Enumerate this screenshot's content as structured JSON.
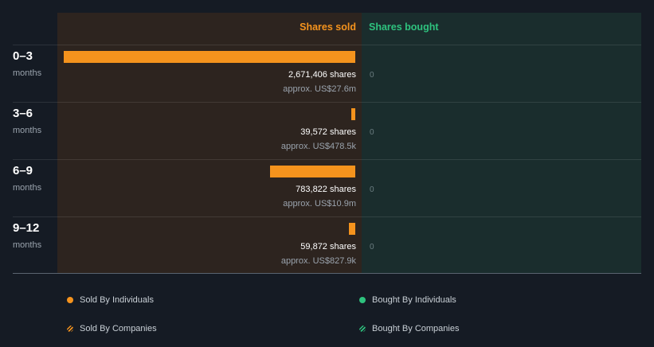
{
  "columns": {
    "sold": "Shares sold",
    "bought": "Shares bought"
  },
  "colors": {
    "sold": "#f5931d",
    "bought": "#2ec27e"
  },
  "chart_data": {
    "type": "bar",
    "orientation": "horizontal",
    "categories": [
      "0–3",
      "3–6",
      "6–9",
      "9–12"
    ],
    "category_unit": "months",
    "series": [
      {
        "name": "Shares sold",
        "values": [
          2671406,
          39572,
          783822,
          59872
        ]
      },
      {
        "name": "Shares bought",
        "values": [
          0,
          0,
          0,
          0
        ]
      }
    ]
  },
  "rows": [
    {
      "period": "0–3",
      "unit": "months",
      "shares_label": "2,671,406 shares",
      "approx_label": "approx. US$27.6m",
      "bought_label": "0"
    },
    {
      "period": "3–6",
      "unit": "months",
      "shares_label": "39,572 shares",
      "approx_label": "approx. US$478.5k",
      "bought_label": "0"
    },
    {
      "period": "6–9",
      "unit": "months",
      "shares_label": "783,822 shares",
      "approx_label": "approx. US$10.9m",
      "bought_label": "0"
    },
    {
      "period": "9–12",
      "unit": "months",
      "shares_label": "59,872 shares",
      "approx_label": "approx. US$827.9k",
      "bought_label": "0"
    }
  ],
  "legend": [
    {
      "label": "Sold By Individuals",
      "icon": "dot-icon",
      "color": "#f5931d"
    },
    {
      "label": "Bought By Individuals",
      "icon": "dot-icon",
      "color": "#2ec27e"
    },
    {
      "label": "Sold By Companies",
      "icon": "hatched-dot-icon",
      "color": "#f5931d"
    },
    {
      "label": "Bought By Companies",
      "icon": "hatched-dot-icon",
      "color": "#2ec27e"
    }
  ]
}
